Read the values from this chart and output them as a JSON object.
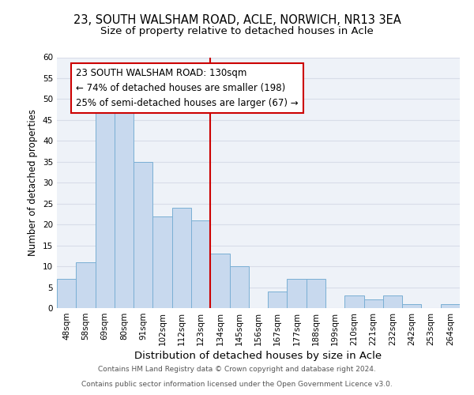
{
  "title1": "23, SOUTH WALSHAM ROAD, ACLE, NORWICH, NR13 3EA",
  "title2": "Size of property relative to detached houses in Acle",
  "xlabel": "Distribution of detached houses by size in Acle",
  "ylabel": "Number of detached properties",
  "bar_labels": [
    "48sqm",
    "58sqm",
    "69sqm",
    "80sqm",
    "91sqm",
    "102sqm",
    "112sqm",
    "123sqm",
    "134sqm",
    "145sqm",
    "156sqm",
    "167sqm",
    "177sqm",
    "188sqm",
    "199sqm",
    "210sqm",
    "221sqm",
    "232sqm",
    "242sqm",
    "253sqm",
    "264sqm"
  ],
  "bar_values": [
    7,
    11,
    48,
    47,
    35,
    22,
    24,
    21,
    13,
    10,
    0,
    4,
    7,
    7,
    0,
    3,
    2,
    3,
    1,
    0,
    1
  ],
  "bar_color": "#c8d9ee",
  "bar_edge_color": "#7aafd4",
  "grid_color": "#d8dde8",
  "vline_color": "#cc0000",
  "annotation_title": "23 SOUTH WALSHAM ROAD: 130sqm",
  "annotation_line1": "← 74% of detached houses are smaller (198)",
  "annotation_line2": "25% of semi-detached houses are larger (67) →",
  "annotation_box_color": "#ffffff",
  "annotation_box_edge": "#cc0000",
  "footer1": "Contains HM Land Registry data © Crown copyright and database right 2024.",
  "footer2": "Contains public sector information licensed under the Open Government Licence v3.0.",
  "bg_color": "#eef2f8",
  "ylim": [
    0,
    60
  ],
  "yticks": [
    0,
    5,
    10,
    15,
    20,
    25,
    30,
    35,
    40,
    45,
    50,
    55,
    60
  ],
  "title1_fontsize": 10.5,
  "title2_fontsize": 9.5,
  "xlabel_fontsize": 9.5,
  "ylabel_fontsize": 8.5,
  "tick_fontsize": 7.5,
  "annotation_fontsize": 8.5,
  "footer_fontsize": 6.5
}
